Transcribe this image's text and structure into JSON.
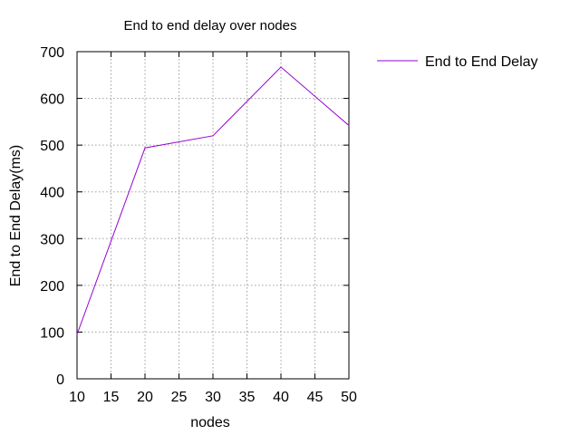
{
  "chart_data": {
    "type": "line",
    "title": "End to end delay over nodes",
    "xlabel": "nodes",
    "ylabel": "End to End Delay(ms)",
    "xlim": [
      10,
      50
    ],
    "ylim": [
      0,
      700
    ],
    "xticks": [
      10,
      15,
      20,
      25,
      30,
      35,
      40,
      45,
      50
    ],
    "yticks": [
      0,
      100,
      200,
      300,
      400,
      500,
      600,
      700
    ],
    "grid": true,
    "legend_position": "top-right-outside",
    "series": [
      {
        "name": "End to End Delay",
        "color": "#9400d3",
        "x": [
          10,
          20,
          30,
          40,
          50
        ],
        "y": [
          95,
          494,
          520,
          667,
          542
        ]
      }
    ]
  }
}
